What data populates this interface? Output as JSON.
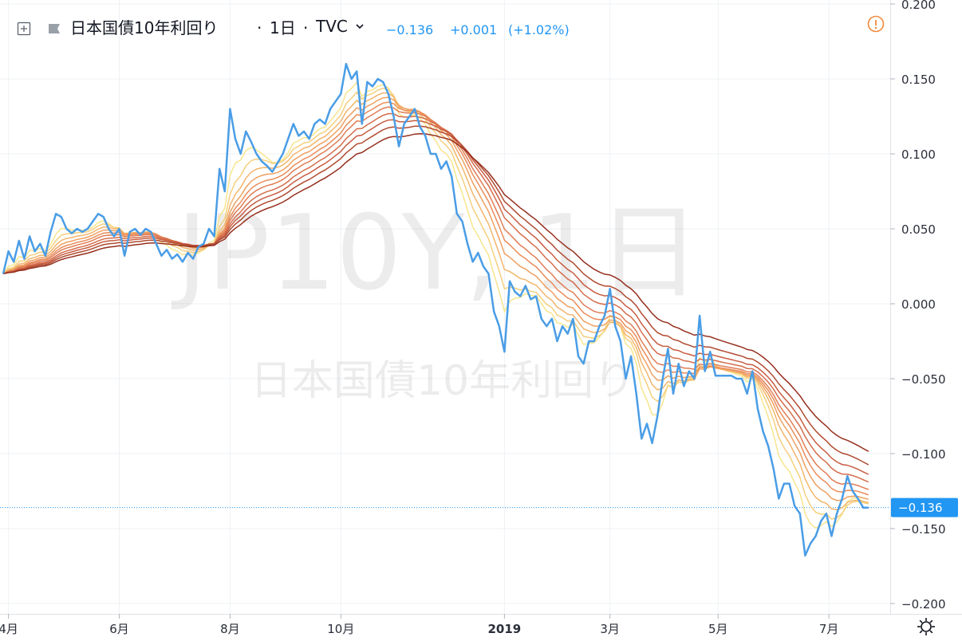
{
  "legend": {
    "symbol_name": "日本国債10年利回り",
    "separator1": "·",
    "interval": "1日",
    "separator2": "·",
    "source": "TVC",
    "last": "−0.136",
    "change": "+0.001",
    "change_pct": "(+1.02%)"
  },
  "watermark": {
    "line1": "JP10Y, 1日",
    "line2": "日本国債10年利回り"
  },
  "price_tag": "−0.136",
  "colors": {
    "main_line": "#4a9de6",
    "price_tag_bg": "#2196f3",
    "ribbon": [
      "#f7e58e",
      "#f5cf7d",
      "#f3b56b",
      "#efa060",
      "#ea8c5a",
      "#e07d55",
      "#d56d4c",
      "#c85c41",
      "#b04b31",
      "#962f1e"
    ],
    "alert": "#f08a3e"
  },
  "icons": {
    "expand": "plus-square-icon",
    "collapse": "flag-icon",
    "dropdown": "chevron-down-icon",
    "alert": "alert-circle-icon",
    "settings": "gear-icon"
  },
  "chart_data": {
    "type": "line",
    "y_ticks": [
      "0.200",
      "0.150",
      "0.100",
      "0.050",
      "0.000",
      "−0.050",
      "−0.100",
      "−0.150",
      "−0.200"
    ],
    "y_tick_values": [
      0.2,
      0.15,
      0.1,
      0.05,
      0.0,
      -0.05,
      -0.1,
      -0.15,
      -0.2
    ],
    "ylim": [
      -0.2,
      0.2
    ],
    "x_ticks": [
      {
        "label": "4月",
        "t": 2,
        "bold": false
      },
      {
        "label": "6月",
        "t": 44,
        "bold": false
      },
      {
        "label": "8月",
        "t": 86,
        "bold": false
      },
      {
        "label": "10月",
        "t": 128,
        "bold": false
      },
      {
        "label": "2019",
        "t": 190,
        "bold": true
      },
      {
        "label": "3月",
        "t": 230,
        "bold": false
      },
      {
        "label": "5月",
        "t": 271,
        "bold": false
      },
      {
        "label": "7月",
        "t": 313,
        "bold": false
      }
    ],
    "x_domain": [
      0,
      332
    ],
    "series": [
      {
        "role": "price",
        "values": [
          [
            0,
            0.02
          ],
          [
            2,
            0.035
          ],
          [
            4,
            0.028
          ],
          [
            6,
            0.042
          ],
          [
            8,
            0.03
          ],
          [
            10,
            0.045
          ],
          [
            12,
            0.035
          ],
          [
            14,
            0.04
          ],
          [
            16,
            0.032
          ],
          [
            18,
            0.048
          ],
          [
            20,
            0.06
          ],
          [
            22,
            0.058
          ],
          [
            24,
            0.05
          ],
          [
            26,
            0.047
          ],
          [
            28,
            0.05
          ],
          [
            30,
            0.048
          ],
          [
            32,
            0.05
          ],
          [
            34,
            0.055
          ],
          [
            36,
            0.06
          ],
          [
            38,
            0.058
          ],
          [
            40,
            0.05
          ],
          [
            42,
            0.045
          ],
          [
            44,
            0.05
          ],
          [
            46,
            0.032
          ],
          [
            48,
            0.048
          ],
          [
            50,
            0.05
          ],
          [
            52,
            0.046
          ],
          [
            54,
            0.05
          ],
          [
            56,
            0.048
          ],
          [
            58,
            0.04
          ],
          [
            60,
            0.032
          ],
          [
            62,
            0.036
          ],
          [
            64,
            0.03
          ],
          [
            66,
            0.033
          ],
          [
            68,
            0.028
          ],
          [
            70,
            0.034
          ],
          [
            72,
            0.03
          ],
          [
            74,
            0.038
          ],
          [
            76,
            0.04
          ],
          [
            78,
            0.05
          ],
          [
            80,
            0.045
          ],
          [
            82,
            0.09
          ],
          [
            84,
            0.075
          ],
          [
            86,
            0.13
          ],
          [
            88,
            0.11
          ],
          [
            90,
            0.1
          ],
          [
            92,
            0.115
          ],
          [
            94,
            0.108
          ],
          [
            96,
            0.1
          ],
          [
            98,
            0.095
          ],
          [
            100,
            0.092
          ],
          [
            102,
            0.088
          ],
          [
            104,
            0.094
          ],
          [
            106,
            0.1
          ],
          [
            108,
            0.11
          ],
          [
            110,
            0.12
          ],
          [
            112,
            0.112
          ],
          [
            114,
            0.115
          ],
          [
            116,
            0.11
          ],
          [
            118,
            0.12
          ],
          [
            120,
            0.123
          ],
          [
            122,
            0.12
          ],
          [
            124,
            0.13
          ],
          [
            126,
            0.135
          ],
          [
            128,
            0.14
          ],
          [
            130,
            0.16
          ],
          [
            132,
            0.15
          ],
          [
            134,
            0.155
          ],
          [
            136,
            0.12
          ],
          [
            138,
            0.148
          ],
          [
            140,
            0.145
          ],
          [
            142,
            0.15
          ],
          [
            144,
            0.148
          ],
          [
            146,
            0.14
          ],
          [
            148,
            0.125
          ],
          [
            150,
            0.105
          ],
          [
            152,
            0.12
          ],
          [
            154,
            0.125
          ],
          [
            156,
            0.13
          ],
          [
            158,
            0.118
          ],
          [
            160,
            0.112
          ],
          [
            162,
            0.1
          ],
          [
            164,
            0.1
          ],
          [
            166,
            0.09
          ],
          [
            168,
            0.095
          ],
          [
            170,
            0.085
          ],
          [
            172,
            0.06
          ],
          [
            174,
            0.055
          ],
          [
            176,
            0.04
          ],
          [
            178,
            0.028
          ],
          [
            180,
            0.034
          ],
          [
            182,
            0.025
          ],
          [
            184,
            0.02
          ],
          [
            186,
            -0.005
          ],
          [
            188,
            -0.015
          ],
          [
            190,
            -0.032
          ],
          [
            192,
            0.015
          ],
          [
            194,
            0.008
          ],
          [
            196,
            0.005
          ],
          [
            198,
            0.012
          ],
          [
            200,
            0.003
          ],
          [
            202,
            0.005
          ],
          [
            204,
            -0.01
          ],
          [
            206,
            -0.015
          ],
          [
            208,
            -0.01
          ],
          [
            210,
            -0.025
          ],
          [
            212,
            -0.015
          ],
          [
            214,
            -0.02
          ],
          [
            216,
            -0.01
          ],
          [
            218,
            -0.035
          ],
          [
            220,
            -0.04
          ],
          [
            222,
            -0.025
          ],
          [
            224,
            -0.025
          ],
          [
            226,
            -0.015
          ],
          [
            228,
            -0.008
          ],
          [
            230,
            0.01
          ],
          [
            232,
            -0.015
          ],
          [
            234,
            -0.025
          ],
          [
            236,
            -0.05
          ],
          [
            238,
            -0.035
          ],
          [
            240,
            -0.06
          ],
          [
            242,
            -0.09
          ],
          [
            244,
            -0.08
          ],
          [
            246,
            -0.093
          ],
          [
            248,
            -0.075
          ],
          [
            250,
            -0.05
          ],
          [
            252,
            -0.03
          ],
          [
            254,
            -0.06
          ],
          [
            256,
            -0.04
          ],
          [
            258,
            -0.055
          ],
          [
            260,
            -0.045
          ],
          [
            262,
            -0.05
          ],
          [
            264,
            -0.008
          ],
          [
            266,
            -0.045
          ],
          [
            268,
            -0.032
          ],
          [
            270,
            -0.048
          ],
          [
            272,
            -0.048
          ],
          [
            274,
            -0.048
          ],
          [
            276,
            -0.048
          ],
          [
            278,
            -0.05
          ],
          [
            280,
            -0.05
          ],
          [
            282,
            -0.06
          ],
          [
            284,
            -0.045
          ],
          [
            286,
            -0.07
          ],
          [
            288,
            -0.085
          ],
          [
            290,
            -0.095
          ],
          [
            292,
            -0.11
          ],
          [
            294,
            -0.13
          ],
          [
            296,
            -0.12
          ],
          [
            298,
            -0.12
          ],
          [
            300,
            -0.135
          ],
          [
            302,
            -0.14
          ],
          [
            304,
            -0.168
          ],
          [
            306,
            -0.16
          ],
          [
            308,
            -0.155
          ],
          [
            310,
            -0.145
          ],
          [
            312,
            -0.14
          ],
          [
            314,
            -0.155
          ],
          [
            316,
            -0.14
          ],
          [
            318,
            -0.13
          ],
          [
            320,
            -0.115
          ],
          [
            322,
            -0.125
          ],
          [
            324,
            -0.13
          ],
          [
            326,
            -0.136
          ],
          [
            328,
            -0.136
          ]
        ]
      }
    ],
    "ribbon_lengths": [
      5,
      8,
      11,
      14,
      17,
      20,
      24,
      28,
      33,
      40
    ]
  }
}
